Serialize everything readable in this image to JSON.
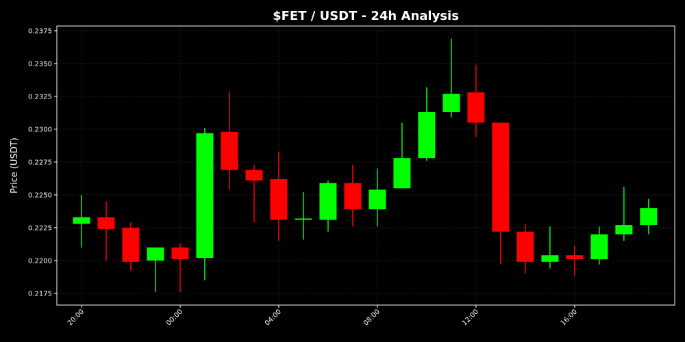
{
  "chart_data": {
    "type": "candlestick",
    "title": "$FET / USDT - 24h Analysis",
    "y_label": "Price (USDT)",
    "categories": [
      "20:00",
      null,
      null,
      null,
      "00:00",
      null,
      null,
      null,
      "04:00",
      null,
      null,
      null,
      "08:00",
      null,
      null,
      null,
      "12:00",
      null,
      null,
      null,
      "16:00",
      null,
      null,
      null
    ],
    "open": [
      0.2228,
      0.2233,
      0.2225,
      0.22,
      0.221,
      0.2202,
      0.2298,
      0.2269,
      0.2262,
      0.2231,
      0.2231,
      0.2259,
      0.2239,
      0.2255,
      0.2278,
      0.2313,
      0.2328,
      0.2305,
      0.2222,
      0.2199,
      0.2204,
      0.2201,
      0.222,
      0.2227
    ],
    "high": [
      0.225,
      0.2245,
      0.2229,
      0.221,
      0.2213,
      0.2301,
      0.2329,
      0.2273,
      0.2283,
      0.2252,
      0.2261,
      0.2273,
      0.227,
      0.2305,
      0.2332,
      0.2369,
      0.2349,
      0.2305,
      0.2228,
      0.2226,
      0.2211,
      0.2226,
      0.2256,
      0.2247
    ],
    "low": [
      0.221,
      0.22,
      0.2192,
      0.2176,
      0.2176,
      0.2185,
      0.2254,
      0.2229,
      0.2215,
      0.2216,
      0.2222,
      0.2226,
      0.2226,
      0.2255,
      0.2276,
      0.2309,
      0.2294,
      0.2197,
      0.219,
      0.2194,
      0.2188,
      0.2197,
      0.2215,
      0.222
    ],
    "close": [
      0.2233,
      0.2224,
      0.2199,
      0.221,
      0.2201,
      0.2297,
      0.2269,
      0.2261,
      0.2231,
      0.2232,
      0.2259,
      0.2239,
      0.2254,
      0.2278,
      0.2313,
      0.2327,
      0.2305,
      0.2222,
      0.2199,
      0.2204,
      0.2201,
      0.222,
      0.2227,
      0.224
    ],
    "up_color": "#00ff00",
    "down_color": "#ff0000",
    "ylim": [
      0.21661,
      0.23786
    ],
    "yticks": [
      0.2175,
      {
        "value": 0.22,
        "label": "0.2200"
      },
      0.2225,
      {
        "value": 0.225,
        "label": "0.2250"
      },
      0.2275,
      {
        "value": 0.23,
        "label": "0.2300"
      },
      0.2325,
      {
        "value": 0.235,
        "label": "0.2350"
      },
      0.2375
    ],
    "grid": true
  }
}
